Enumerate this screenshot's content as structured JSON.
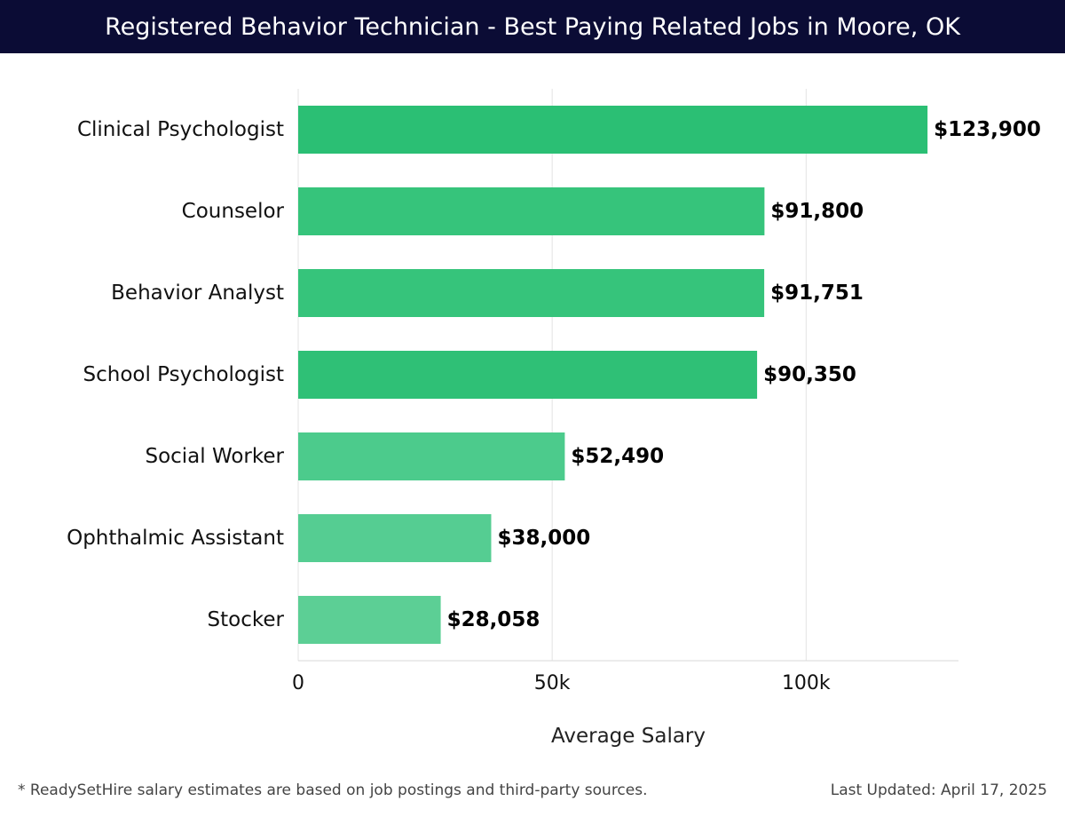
{
  "header": {
    "title": "Registered Behavior Technician - Best Paying Related Jobs in Moore, OK"
  },
  "chart_data": {
    "type": "bar",
    "orientation": "horizontal",
    "categories": [
      "Clinical Psychologist",
      "Counselor",
      "Behavior Analyst",
      "School Psychologist",
      "Social Worker",
      "Ophthalmic Assistant",
      "Stocker"
    ],
    "values": [
      123900,
      91800,
      91751,
      90350,
      52490,
      38000,
      28058
    ],
    "value_labels": [
      "$123,900",
      "$91,800",
      "$91,751",
      "$90,350",
      "$52,490",
      "$38,000",
      "$28,058"
    ],
    "bar_colors": [
      "#2bbf74",
      "#36c47b",
      "#36c47b",
      "#2fc076",
      "#4ccb8c",
      "#55cd92",
      "#5ccf95"
    ],
    "xlabel": "Average Salary",
    "ylabel": "",
    "xlim": [
      0,
      130000
    ],
    "xticks": [
      0,
      50000,
      100000
    ],
    "xtick_labels": [
      "0",
      "50k",
      "100k"
    ],
    "grid": true
  },
  "footer": {
    "note": "* ReadySetHire salary estimates are based on job postings and third-party sources.",
    "updated": "Last Updated: April 17, 2025"
  }
}
